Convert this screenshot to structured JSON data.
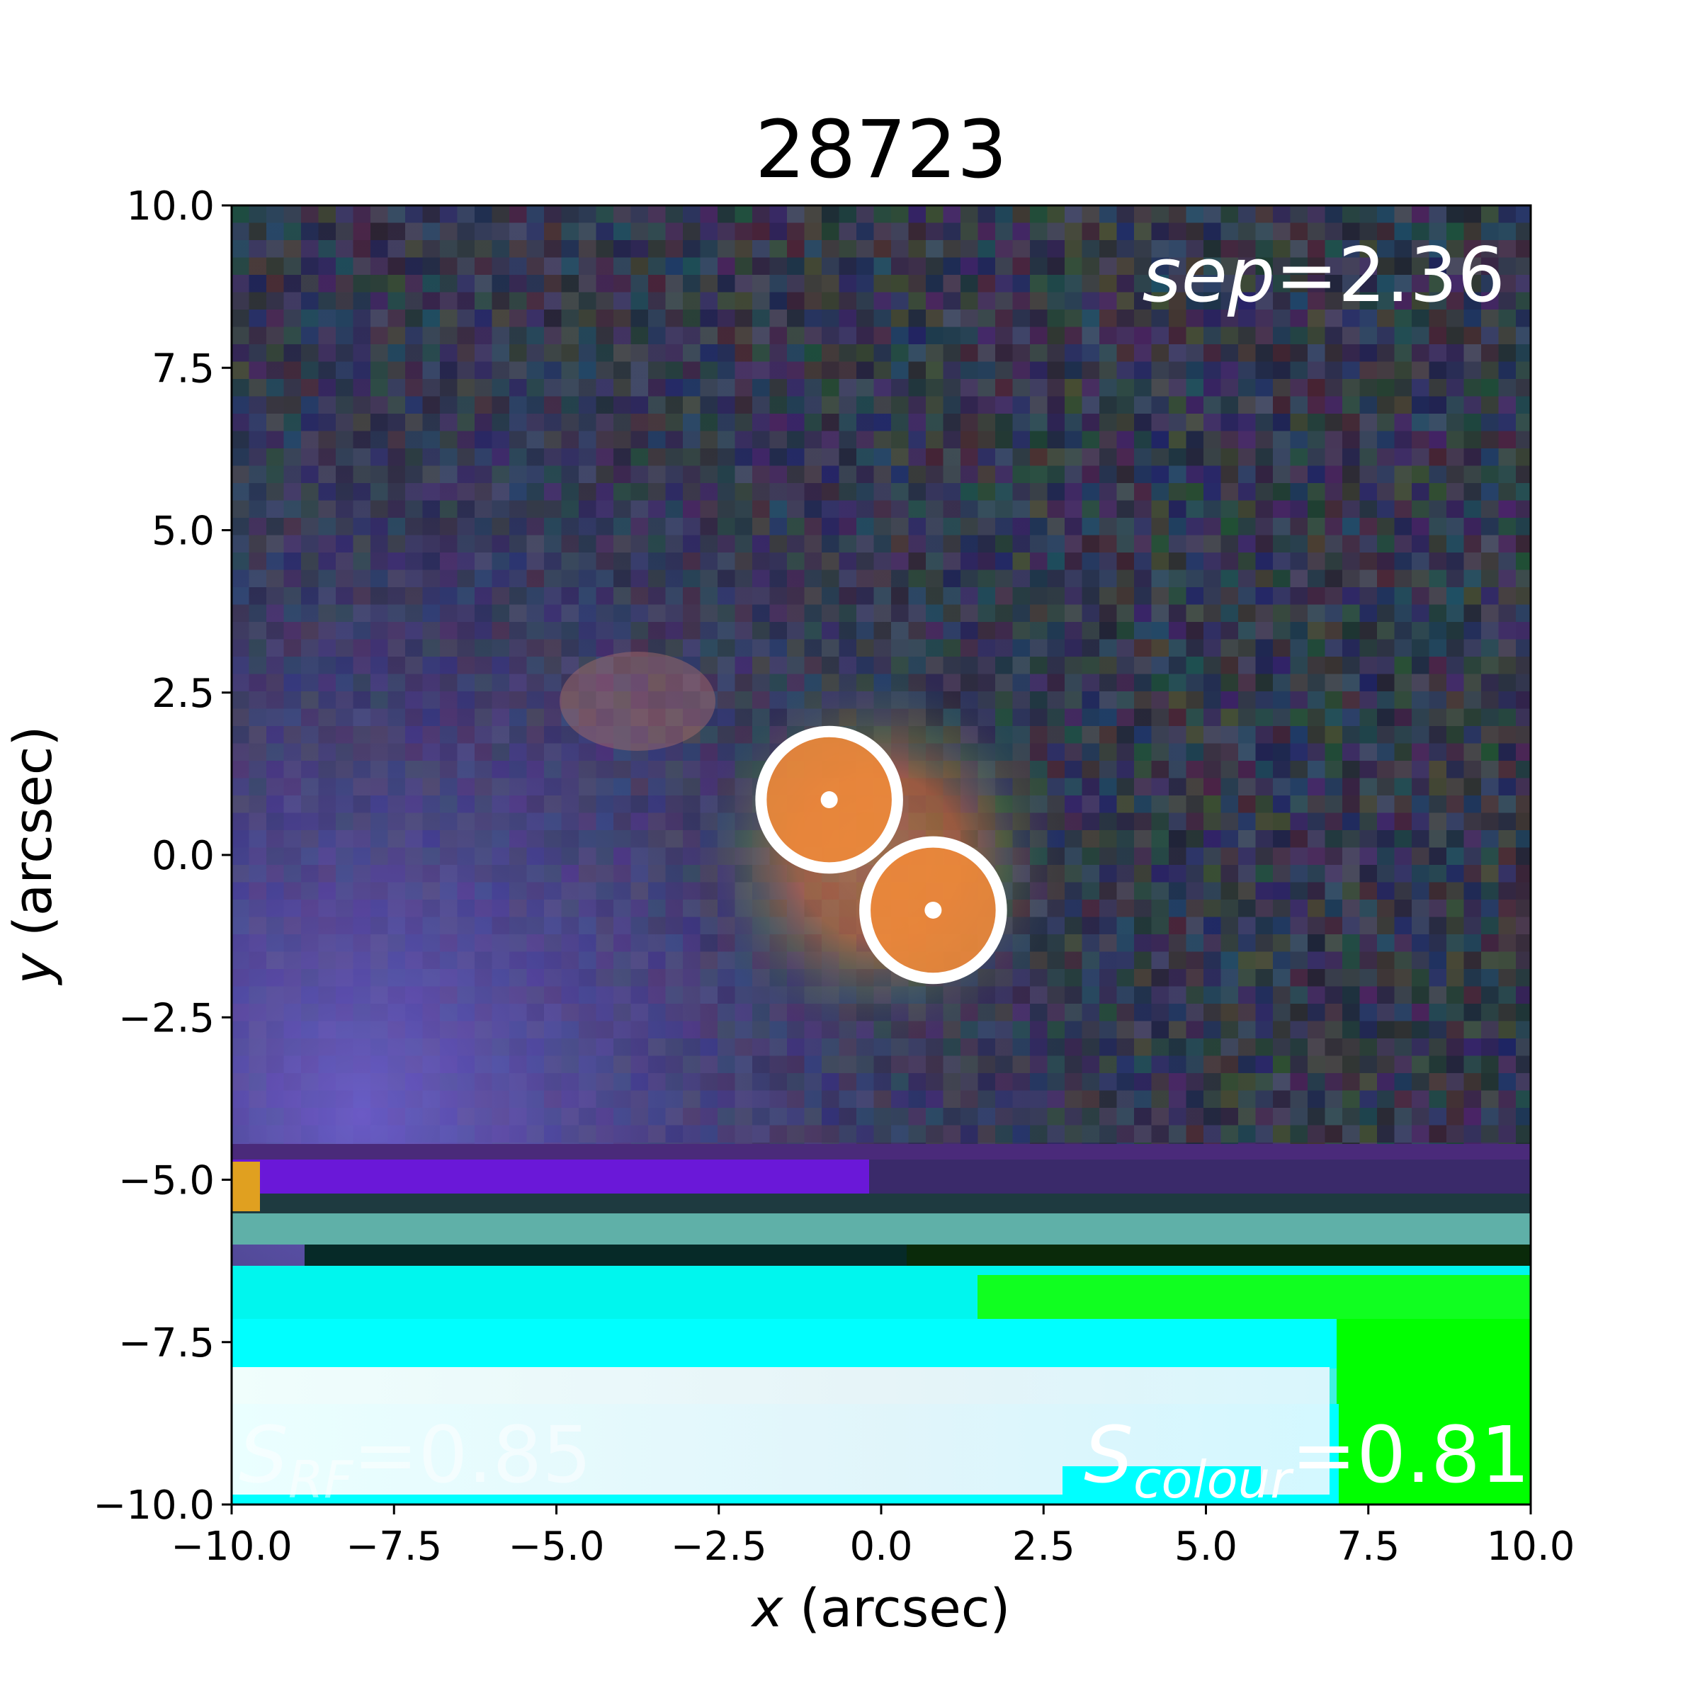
{
  "title": "28723",
  "axes": {
    "xlabel_var": "x",
    "xlabel_unit": " (arcsec)",
    "ylabel_var": "y",
    "ylabel_unit": " (arcsec)",
    "xlim": [
      -10,
      10
    ],
    "ylim": [
      -10,
      10
    ],
    "xticks": [
      "−10.0",
      "−7.5",
      "−5.0",
      "−2.5",
      "0.0",
      "2.5",
      "5.0",
      "7.5",
      "10.0"
    ],
    "yticks": [
      "10.0",
      "7.5",
      "5.0",
      "2.5",
      "0.0",
      "−2.5",
      "−5.0",
      "−7.5",
      "−10.0"
    ]
  },
  "annotations": {
    "sep_var": "sep",
    "sep_value": "=2.36",
    "srf_var": "S",
    "srf_sub": "RF",
    "srf_value": "=0.85",
    "scolour_var": "S",
    "scolour_sub": "colour",
    "scolour_value": "=0.81"
  },
  "sources": [
    {
      "x": -0.8,
      "y": 0.85,
      "radius": 1.05
    },
    {
      "x": 0.8,
      "y": -0.85,
      "radius": 1.05
    }
  ],
  "colors": {
    "background_noise": "#2f3350",
    "purple_glow": "#6a54b8",
    "source_orange": "#f08a3a",
    "cyan_artifact": "#00ffff",
    "green_artifact": "#00ff00",
    "marker": "#ffffff"
  }
}
